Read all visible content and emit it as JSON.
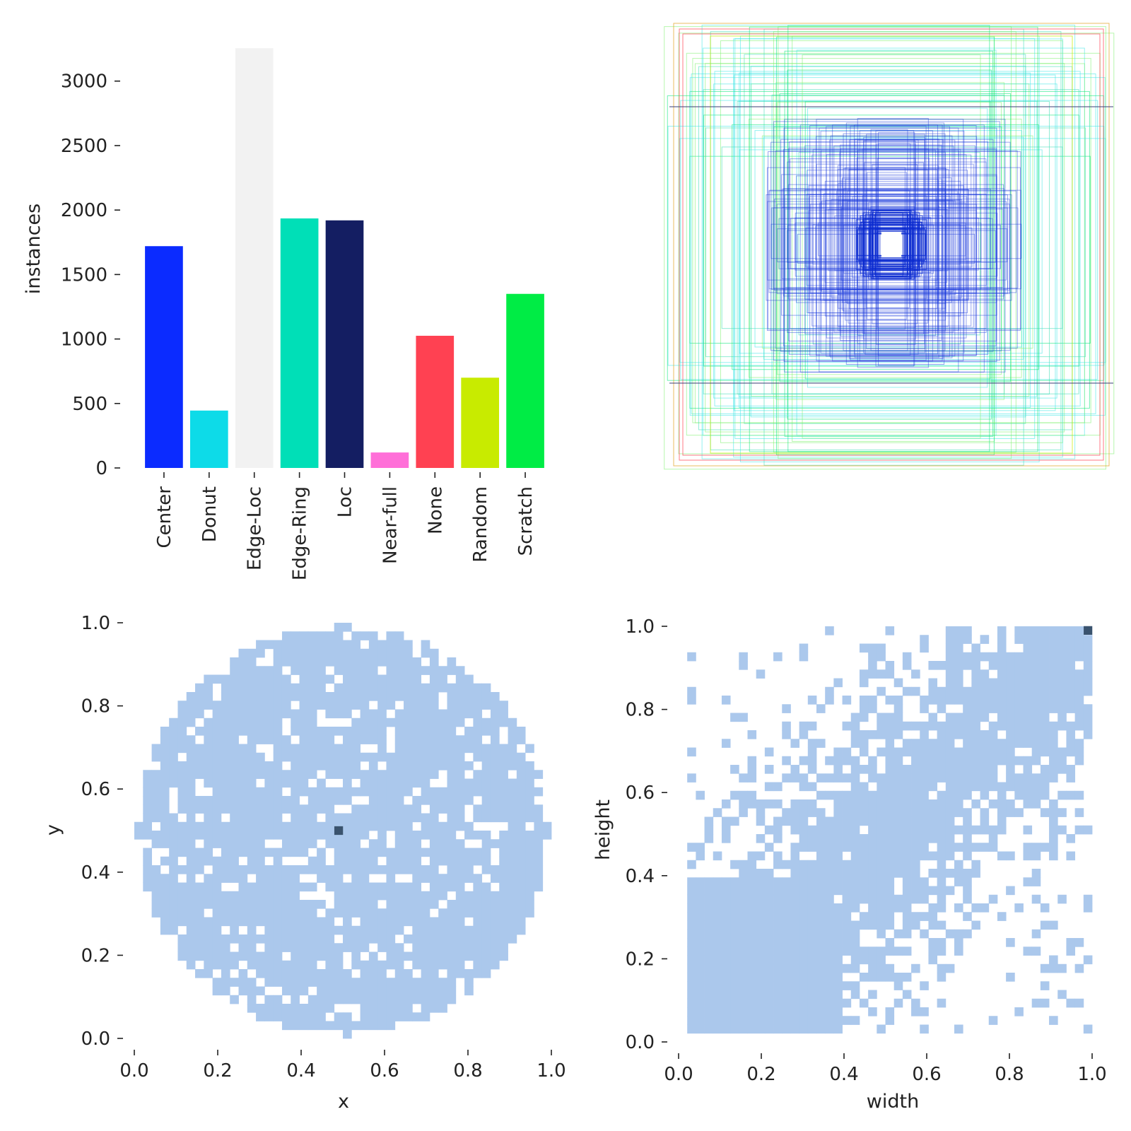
{
  "chart_data": [
    {
      "type": "bar",
      "categories": [
        "Center",
        "Donut",
        "Edge-Loc",
        "Edge-Ring",
        "Loc",
        "Near-full",
        "None",
        "Random",
        "Scratch"
      ],
      "values": [
        1720,
        445,
        3255,
        1935,
        1920,
        120,
        1025,
        700,
        1350
      ],
      "colors": [
        "#0b2bff",
        "#0ddbe8",
        "#f2f2f2",
        "#00dfb7",
        "#141e62",
        "#ff6fd8",
        "#ff4152",
        "#c8eb00",
        "#00ec45"
      ],
      "xlabel": "",
      "ylabel": "instances",
      "ylim": [
        0,
        3300
      ],
      "yticks": [
        "0",
        "500",
        "1000",
        "1500",
        "2000",
        "2500",
        "3000"
      ],
      "grid": false
    },
    {
      "type": "boxes",
      "description_colors": [
        "#00e676",
        "#38ddb5",
        "#1a3adb",
        "#c8eb00",
        "#ff4152",
        "#3a3f75"
      ],
      "grid": false
    },
    {
      "type": "heatmap",
      "xlabel": "x",
      "ylabel": "y",
      "xlim": [
        0,
        1
      ],
      "ylim": [
        0,
        1
      ],
      "xticks": [
        "0.0",
        "0.2",
        "0.4",
        "0.6",
        "0.8",
        "1.0"
      ],
      "yticks": [
        "0.0",
        "0.2",
        "0.4",
        "0.6",
        "0.8",
        "1.0"
      ],
      "cell_color": "#abc8ec",
      "peak_color": "#3a536e",
      "peak": [
        0.49,
        0.5
      ],
      "shape": "disk",
      "grid": false
    },
    {
      "type": "heatmap",
      "xlabel": "width",
      "ylabel": "height",
      "xlim": [
        0,
        1
      ],
      "ylim": [
        0,
        1
      ],
      "xticks": [
        "0.0",
        "0.2",
        "0.4",
        "0.6",
        "0.8",
        "1.0"
      ],
      "yticks": [
        "0.0",
        "0.2",
        "0.4",
        "0.6",
        "0.8",
        "1.0"
      ],
      "cell_color": "#abc8ec",
      "peak_color": "#3a536e",
      "peak": [
        0.99,
        0.99
      ],
      "shape": "diagonal band",
      "grid": false
    }
  ]
}
